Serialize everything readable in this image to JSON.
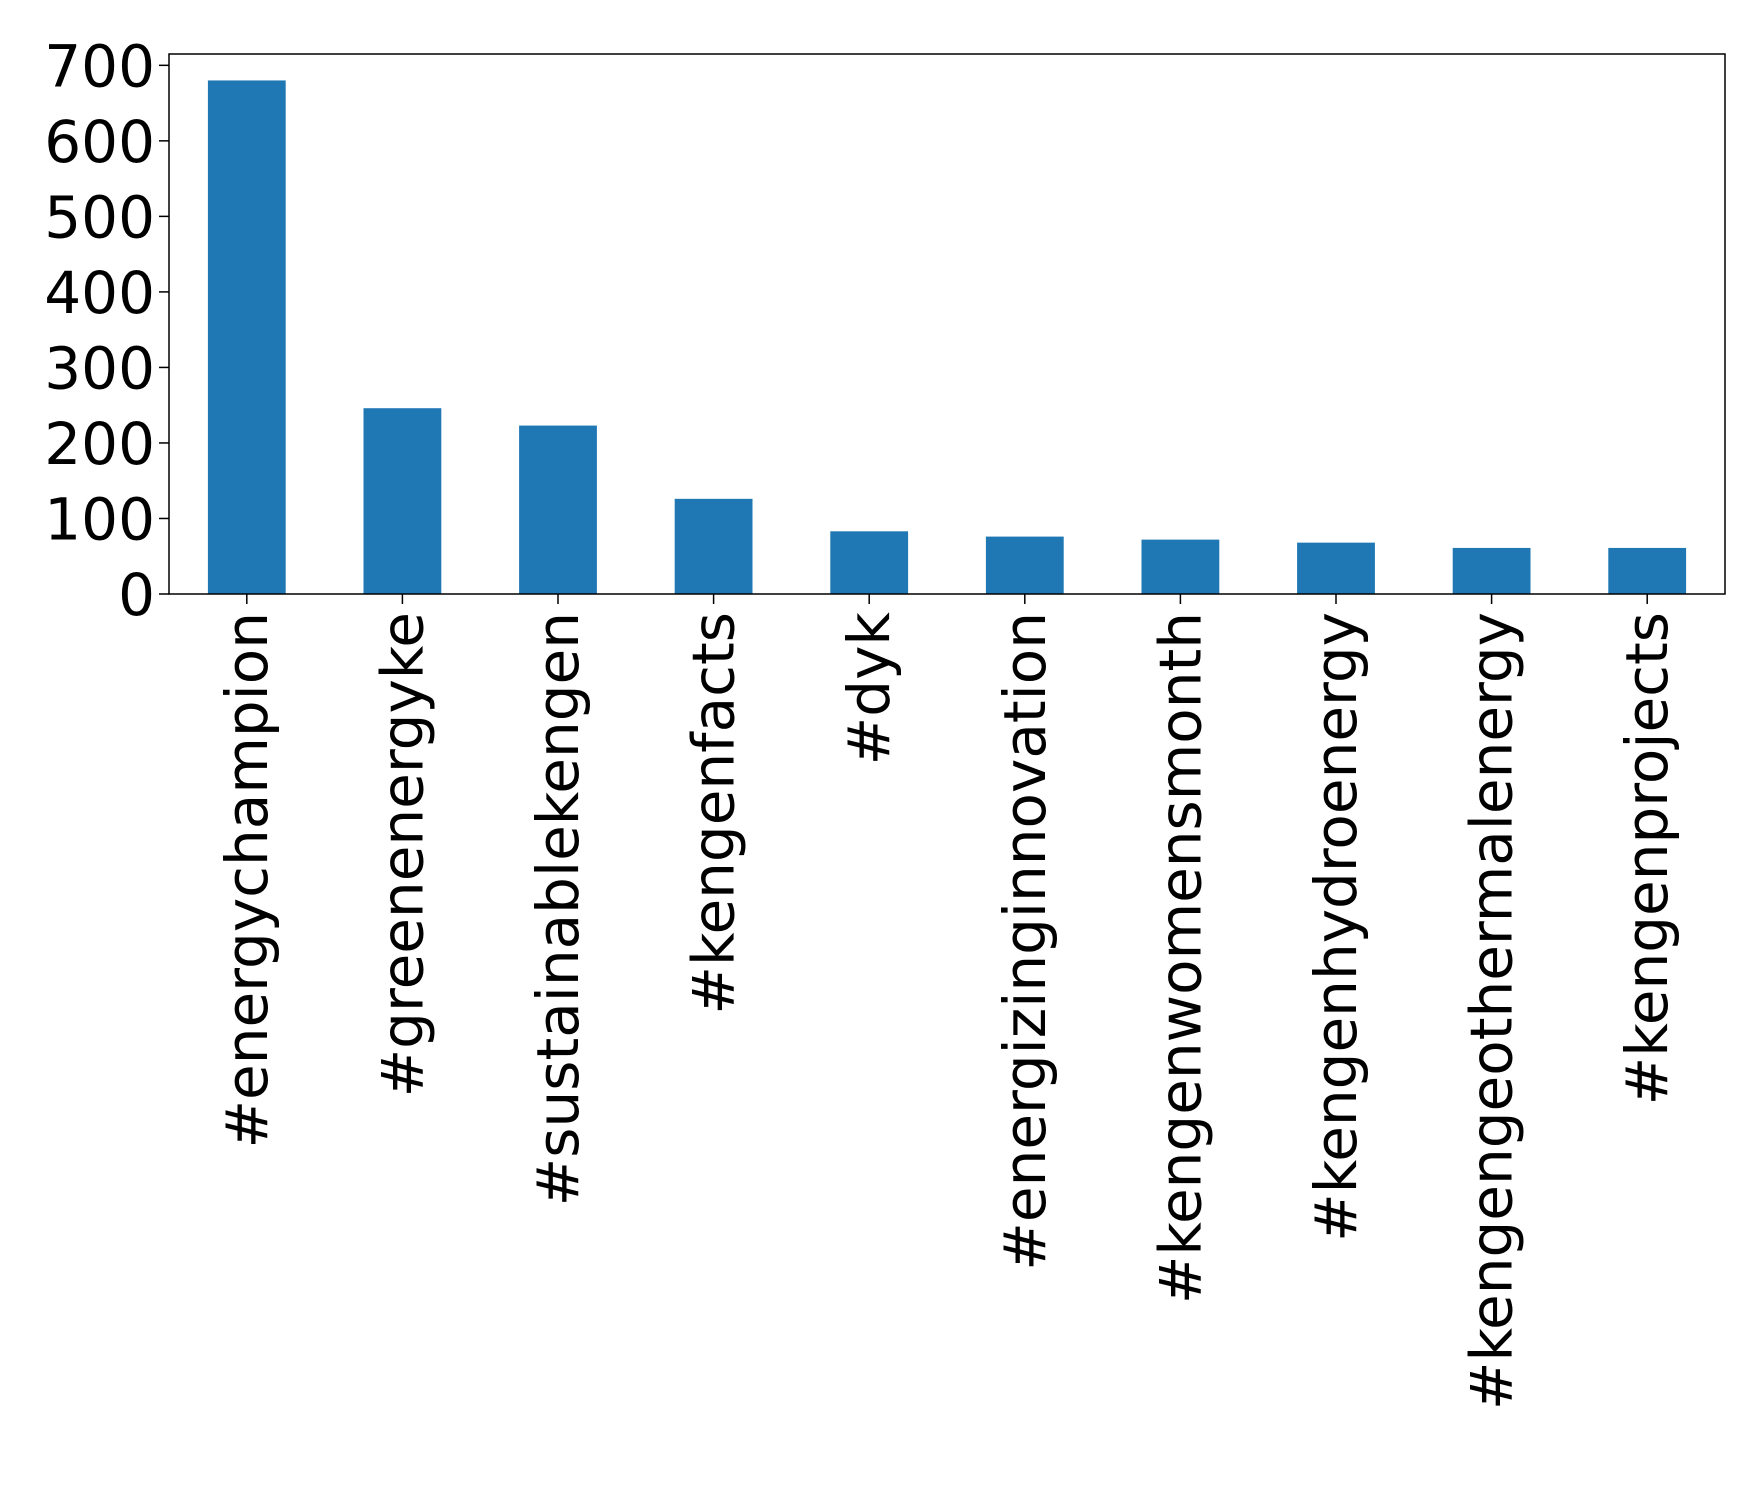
{
  "chart_data": {
    "type": "bar",
    "title": "",
    "xlabel": "",
    "ylabel": "",
    "categories": [
      "#energychampion",
      "#greenenergyke",
      "#sustainablekengen",
      "#kengenfacts",
      "#dyk",
      "#energizinginnovation",
      "#kengenwomensmonth",
      "#kengenhydroenergy",
      "#kengengeothermalenergy",
      "#kengenprojects"
    ],
    "values": [
      680,
      246,
      223,
      126,
      83,
      76,
      72,
      68,
      61,
      61
    ],
    "ylim": [
      0,
      715
    ],
    "yticks": [
      0,
      100,
      200,
      300,
      400,
      500,
      600,
      700
    ],
    "grid": false,
    "legend": "none",
    "bar_color": "#1f77b4"
  }
}
